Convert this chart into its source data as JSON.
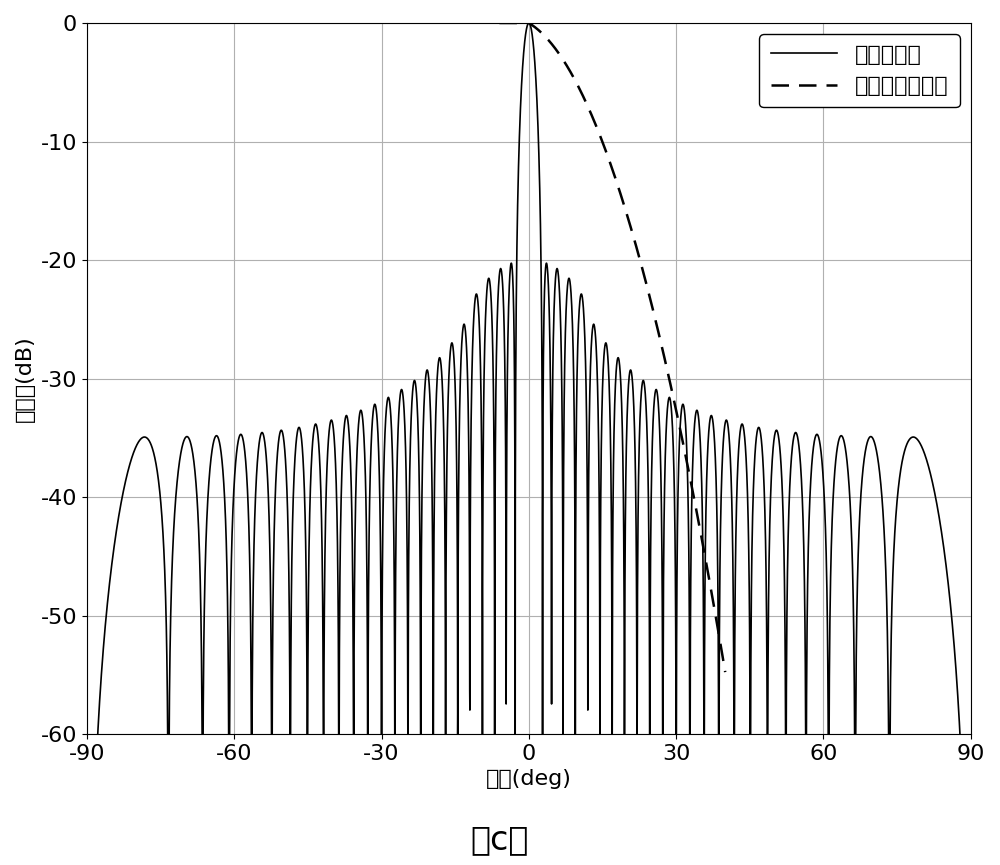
{
  "subtitle": "（c）",
  "xlabel": "角度(deg)",
  "ylabel": "波瓣图(dB)",
  "xlim": [
    -90,
    90
  ],
  "ylim": [
    -60,
    0
  ],
  "xticks": [
    -90,
    -60,
    -30,
    0,
    30,
    60,
    90
  ],
  "yticks": [
    -60,
    -50,
    -40,
    -30,
    -20,
    -10,
    0
  ],
  "legend_dashed": "要求的赋形曲线",
  "legend_solid": "赋形方向图",
  "grid_color": "#b0b0b0",
  "line_color": "#000000",
  "background_color": "#ffffff",
  "figsize": [
    10.0,
    8.65
  ],
  "dpi": 100,
  "font_size": 16,
  "subtitle_font_size": 24
}
